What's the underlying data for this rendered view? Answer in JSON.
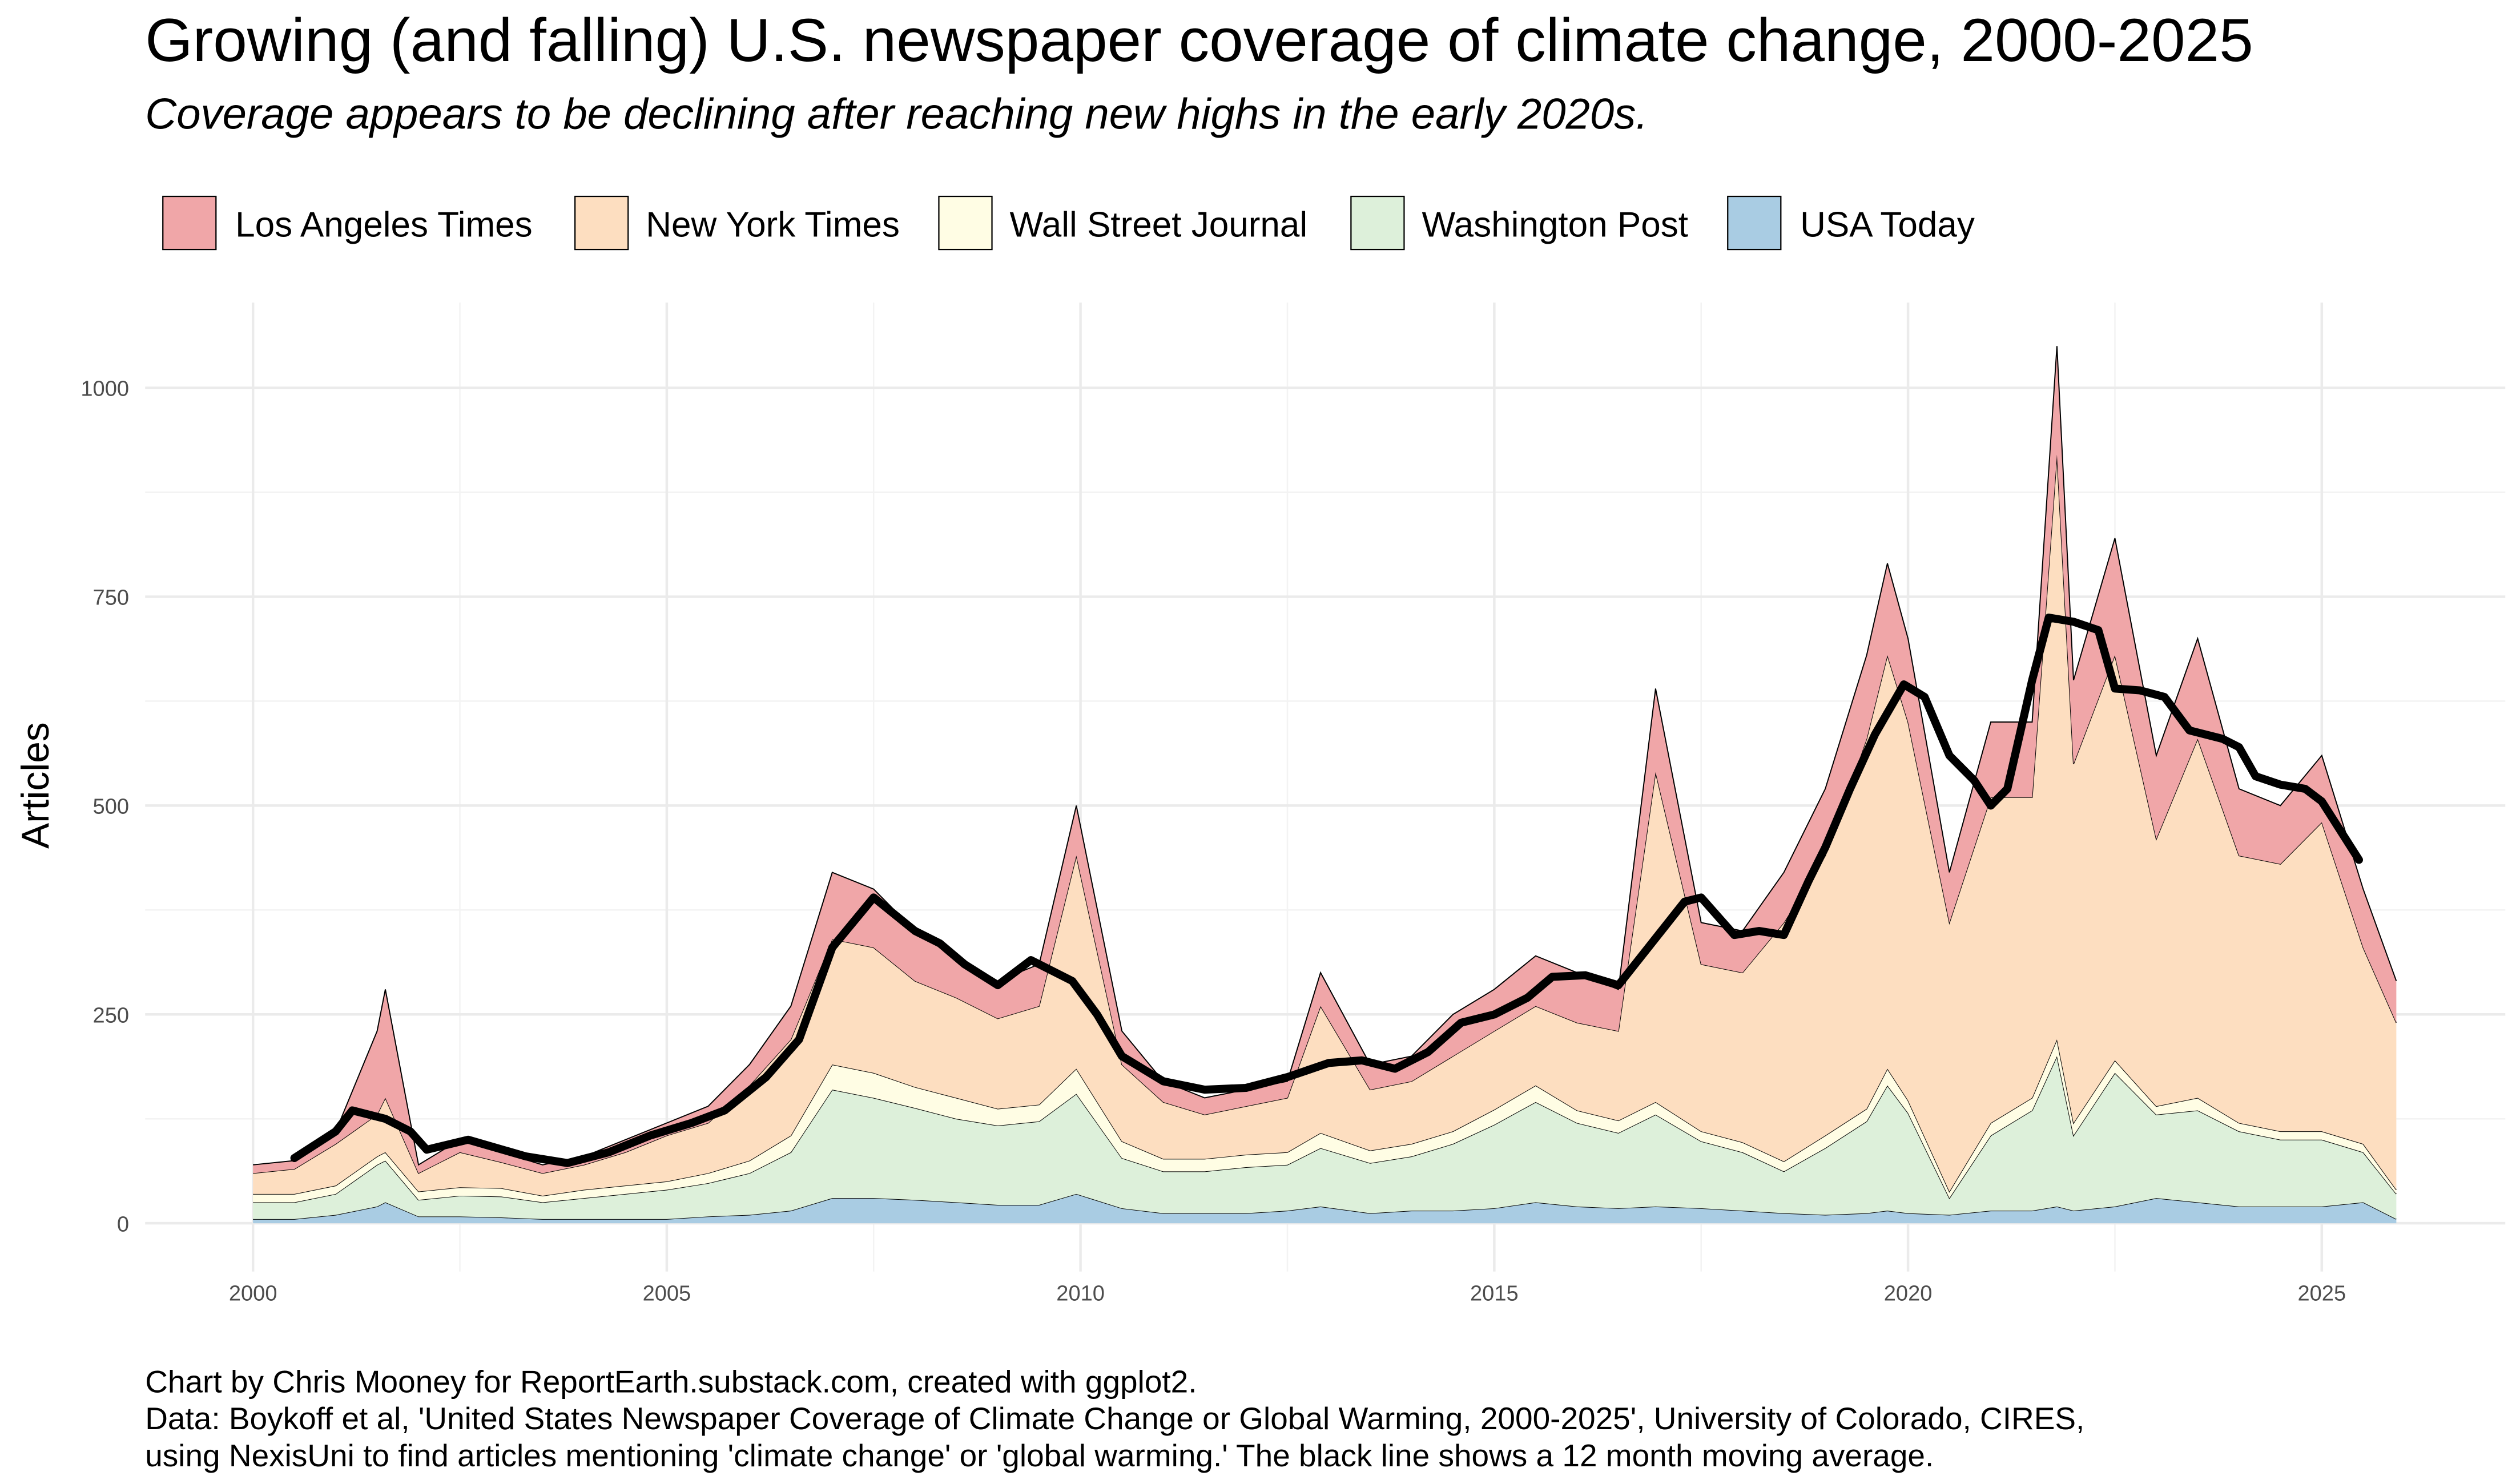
{
  "chart_data": {
    "type": "area",
    "stacked": true,
    "title": "Growing (and falling) U.S. newspaper coverage of climate change, 2000-2025",
    "subtitle": "Coverage appears to be declining after reaching new highs in the early 2020s.",
    "xlabel": "",
    "ylabel": "Articles",
    "xlim": [
      1998.7,
      2027.2
    ],
    "ylim": [
      -50,
      1100
    ],
    "x_ticks": [
      2000,
      2005,
      2010,
      2015,
      2020,
      2025
    ],
    "y_ticks": [
      0,
      250,
      500,
      750,
      1000
    ],
    "grid": true,
    "legend_position": "top-left",
    "legend": [
      "Los Angeles Times",
      "New York Times",
      "Wall Street Journal",
      "Washington Post",
      "USA Today"
    ],
    "x": [
      2000.0,
      2000.5,
      2001.0,
      2001.5,
      2001.6,
      2002.0,
      2002.5,
      2003.0,
      2003.5,
      2004.0,
      2004.5,
      2005.0,
      2005.5,
      2006.0,
      2006.5,
      2007.0,
      2007.5,
      2008.0,
      2008.5,
      2009.0,
      2009.5,
      2009.95,
      2010.5,
      2011.0,
      2011.5,
      2012.0,
      2012.5,
      2012.9,
      2013.5,
      2014.0,
      2014.5,
      2015.0,
      2015.5,
      2016.0,
      2016.5,
      2016.95,
      2017.5,
      2018.0,
      2018.5,
      2019.0,
      2019.5,
      2019.75,
      2020.0,
      2020.5,
      2021.0,
      2021.5,
      2021.8,
      2022.0,
      2022.5,
      2023.0,
      2023.5,
      2024.0,
      2024.5,
      2025.0,
      2025.5,
      2025.9
    ],
    "series": [
      {
        "name": "USA Today",
        "color": "#A9CCE3",
        "values": [
          5,
          5,
          10,
          20,
          25,
          8,
          8,
          7,
          5,
          5,
          5,
          5,
          8,
          10,
          15,
          30,
          30,
          28,
          25,
          22,
          22,
          35,
          18,
          12,
          12,
          12,
          15,
          20,
          12,
          15,
          15,
          18,
          25,
          20,
          18,
          20,
          18,
          15,
          12,
          10,
          12,
          15,
          12,
          10,
          15,
          15,
          20,
          15,
          20,
          30,
          25,
          20,
          20,
          20,
          25,
          5
        ]
      },
      {
        "name": "Washington Post",
        "color": "#DDF0DA",
        "values": [
          20,
          20,
          25,
          50,
          50,
          20,
          25,
          25,
          20,
          25,
          30,
          35,
          40,
          50,
          70,
          130,
          120,
          110,
          100,
          95,
          100,
          120,
          60,
          50,
          50,
          55,
          55,
          70,
          60,
          65,
          80,
          100,
          120,
          100,
          90,
          110,
          80,
          70,
          50,
          80,
          110,
          150,
          120,
          20,
          90,
          120,
          180,
          90,
          160,
          100,
          110,
          90,
          80,
          80,
          60,
          30
        ]
      },
      {
        "name": "Wall Street Journal",
        "color": "#FFFDE4",
        "values": [
          10,
          10,
          10,
          10,
          10,
          10,
          10,
          10,
          8,
          10,
          10,
          10,
          12,
          15,
          20,
          30,
          30,
          25,
          25,
          20,
          20,
          30,
          20,
          15,
          15,
          15,
          15,
          18,
          15,
          15,
          15,
          18,
          20,
          15,
          15,
          15,
          12,
          12,
          12,
          15,
          15,
          20,
          15,
          8,
          15,
          15,
          20,
          15,
          15,
          10,
          15,
          10,
          10,
          10,
          10,
          5
        ]
      },
      {
        "name": "New York Times",
        "color": "#FDDEC0",
        "values": [
          25,
          30,
          50,
          50,
          65,
          22,
          42,
          31,
          27,
          30,
          40,
          55,
          60,
          90,
          115,
          150,
          150,
          127,
          120,
          108,
          118,
          255,
          92,
          68,
          53,
          58,
          65,
          152,
          73,
          75,
          90,
          94,
          95,
          105,
          107,
          395,
          200,
          203,
          286,
          335,
          443,
          495,
          453,
          322,
          390,
          360,
          700,
          430,
          485,
          320,
          430,
          320,
          320,
          370,
          235,
          200
        ]
      },
      {
        "name": "Los Angeles Times",
        "color": "#F0A6A8",
        "values": [
          10,
          10,
          15,
          100,
          130,
          10,
          15,
          12,
          10,
          10,
          15,
          15,
          20,
          25,
          40,
          80,
          70,
          60,
          50,
          45,
          50,
          60,
          40,
          25,
          20,
          20,
          20,
          40,
          30,
          30,
          50,
          50,
          60,
          60,
          50,
          100,
          50,
          50,
          60,
          80,
          100,
          110,
          100,
          60,
          90,
          90,
          130,
          100,
          140,
          100,
          120,
          80,
          70,
          80,
          70,
          50
        ]
      }
    ],
    "moving_average": {
      "name": "12 month moving average",
      "color": "#000000",
      "x": [
        2000.5,
        2001.0,
        2001.2,
        2001.6,
        2001.9,
        2002.1,
        2002.6,
        2003.3,
        2003.8,
        2004.3,
        2004.8,
        2005.3,
        2005.7,
        2006.2,
        2006.6,
        2007.0,
        2007.5,
        2008.0,
        2008.3,
        2008.6,
        2009.0,
        2009.4,
        2009.9,
        2010.2,
        2010.5,
        2011.0,
        2011.5,
        2012.0,
        2012.5,
        2013.0,
        2013.4,
        2013.8,
        2014.2,
        2014.6,
        2015.0,
        2015.4,
        2015.7,
        2016.1,
        2016.5,
        2016.9,
        2017.3,
        2017.5,
        2017.9,
        2018.2,
        2018.5,
        2018.8,
        2019.0,
        2019.3,
        2019.6,
        2019.95,
        2020.2,
        2020.5,
        2020.8,
        2021.0,
        2021.2,
        2021.5,
        2021.7,
        2022.0,
        2022.3,
        2022.5,
        2022.8,
        2023.1,
        2023.4,
        2023.8,
        2024.0,
        2024.2,
        2024.5,
        2024.8,
        2025.0,
        2025.45
      ],
      "y": [
        78,
        110,
        135,
        125,
        110,
        88,
        100,
        80,
        72,
        85,
        105,
        120,
        135,
        175,
        220,
        330,
        390,
        350,
        335,
        310,
        285,
        315,
        290,
        250,
        200,
        170,
        160,
        162,
        175,
        192,
        195,
        185,
        205,
        240,
        250,
        270,
        295,
        297,
        285,
        335,
        385,
        390,
        345,
        350,
        345,
        410,
        450,
        520,
        585,
        645,
        630,
        560,
        530,
        500,
        520,
        650,
        725,
        720,
        710,
        640,
        638,
        630,
        590,
        580,
        570,
        535,
        525,
        520,
        505,
        435
      ]
    },
    "caption": [
      "Chart by Chris Mooney for ReportEarth.substack.com, created with ggplot2.",
      "Data: Boykoff et al, 'United States Newspaper Coverage of Climate Change or Global Warming, 2000-2025', University of Colorado, CIRES,",
      "using NexisUni to find articles mentioning 'climate change' or 'global warming.' The black line shows a 12 month moving average."
    ]
  }
}
